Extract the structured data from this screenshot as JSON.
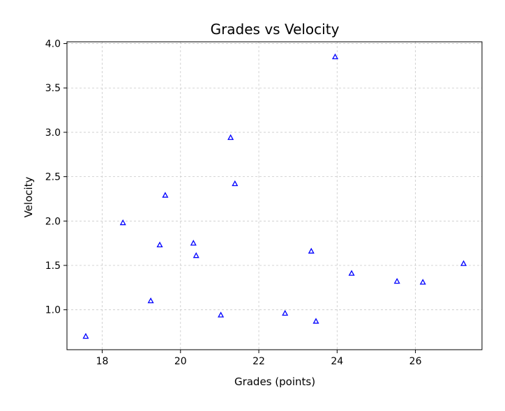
{
  "chart_data": {
    "type": "scatter",
    "title": "Grades vs Velocity",
    "xlabel": "Grades (points)",
    "ylabel": "Velocity",
    "xlim": [
      17.1,
      27.7
    ],
    "ylim": [
      0.55,
      4.02
    ],
    "xticks": [
      18,
      20,
      22,
      24,
      26
    ],
    "yticks": [
      1.0,
      1.5,
      2.0,
      2.5,
      3.0,
      3.5,
      4.0
    ],
    "xtick_labels": [
      "18",
      "20",
      "22",
      "24",
      "26"
    ],
    "ytick_labels": [
      "1.0",
      "1.5",
      "2.0",
      "2.5",
      "3.0",
      "3.5",
      "4.0"
    ],
    "grid": true,
    "marker": "triangle-up",
    "marker_color": "#0000ff",
    "points": [
      {
        "x": 17.58,
        "y": 0.7
      },
      {
        "x": 18.53,
        "y": 1.98
      },
      {
        "x": 19.24,
        "y": 1.1
      },
      {
        "x": 19.47,
        "y": 1.73
      },
      {
        "x": 19.61,
        "y": 2.29
      },
      {
        "x": 20.33,
        "y": 1.75
      },
      {
        "x": 20.4,
        "y": 1.61
      },
      {
        "x": 21.03,
        "y": 0.94
      },
      {
        "x": 21.28,
        "y": 2.94
      },
      {
        "x": 21.39,
        "y": 2.42
      },
      {
        "x": 22.67,
        "y": 0.96
      },
      {
        "x": 23.34,
        "y": 1.66
      },
      {
        "x": 23.46,
        "y": 0.87
      },
      {
        "x": 23.95,
        "y": 3.85
      },
      {
        "x": 24.37,
        "y": 1.41
      },
      {
        "x": 25.53,
        "y": 1.32
      },
      {
        "x": 26.19,
        "y": 1.31
      },
      {
        "x": 27.23,
        "y": 1.52
      }
    ]
  }
}
